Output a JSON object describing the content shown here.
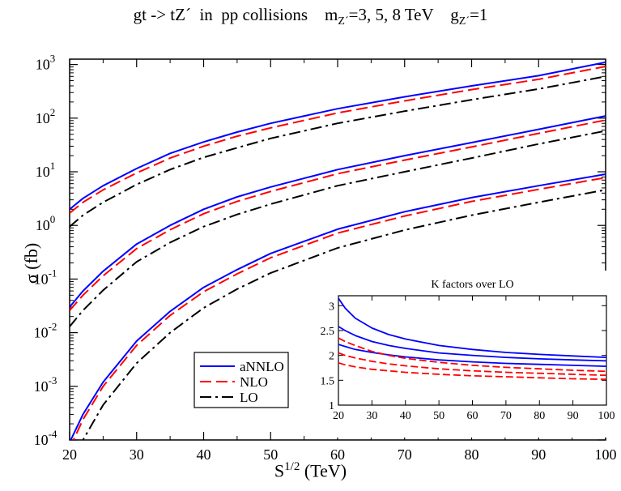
{
  "chart_data": {
    "type": "line",
    "title_parts": {
      "prefix": "gt -> tZ´  in  pp collisions    m",
      "sub1": "Z´",
      "middle": "=3, 5, 8 TeV    g",
      "sub2": "Z´",
      "suffix": "=1"
    },
    "xlabel_base": "S",
    "xlabel_sup": "1/2",
    "xlabel_unit": " (TeV)",
    "ylabel": "σ (fb)",
    "xlim": [
      20,
      100
    ],
    "ylim_log10": [
      -4,
      3.1
    ],
    "x_ticks": [
      "20",
      "30",
      "40",
      "50",
      "60",
      "70",
      "80",
      "90",
      "100"
    ],
    "y_tick_exponents": [
      "-4",
      "-3",
      "-2",
      "-1",
      "0",
      "1",
      "2",
      "3"
    ],
    "y_tick_base": "10",
    "legend": {
      "placement": "bottom-center",
      "entries": [
        {
          "label": "aNNLO",
          "color": "#0000ff",
          "style": "solid"
        },
        {
          "label": "NLO",
          "color": "#ff0000",
          "style": "dashed"
        },
        {
          "label": "LO",
          "color": "#000000",
          "style": "dashdot"
        }
      ]
    },
    "x": [
      20,
      22,
      25,
      30,
      35,
      40,
      45,
      50,
      60,
      70,
      80,
      90,
      100
    ],
    "series_main": [
      {
        "mass": "3 TeV",
        "order": "aNNLO",
        "color": "#0000ff",
        "style": "solid",
        "values": [
          2.0,
          3.2,
          5.5,
          11.5,
          22,
          36,
          55,
          80,
          150,
          250,
          400,
          620,
          1100
        ]
      },
      {
        "mass": "3 TeV",
        "order": "NLO",
        "color": "#ff0000",
        "style": "dashed",
        "values": [
          1.7,
          2.7,
          4.6,
          9.5,
          18,
          30,
          46,
          66,
          125,
          210,
          340,
          530,
          920
        ]
      },
      {
        "mass": "3 TeV",
        "order": "LO",
        "color": "#000000",
        "style": "dashdot",
        "values": [
          0.95,
          1.55,
          2.7,
          5.8,
          11,
          18.5,
          28,
          42,
          80,
          135,
          220,
          350,
          600
        ]
      },
      {
        "mass": "5 TeV",
        "order": "aNNLO",
        "color": "#0000ff",
        "style": "solid",
        "values": [
          0.03,
          0.06,
          0.14,
          0.45,
          1.0,
          2.0,
          3.4,
          5.2,
          11,
          20,
          35,
          62,
          110
        ]
      },
      {
        "mass": "5 TeV",
        "order": "NLO",
        "color": "#ff0000",
        "style": "dashed",
        "values": [
          0.026,
          0.05,
          0.115,
          0.37,
          0.83,
          1.65,
          2.8,
          4.3,
          9.2,
          16.5,
          29,
          52,
          92
        ]
      },
      {
        "mass": "5 TeV",
        "order": "LO",
        "color": "#000000",
        "style": "dashdot",
        "values": [
          0.013,
          0.026,
          0.062,
          0.21,
          0.48,
          0.95,
          1.6,
          2.5,
          5.5,
          10,
          18,
          33,
          58
        ]
      },
      {
        "mass": "8 TeV",
        "order": "aNNLO",
        "color": "#0000ff",
        "style": "solid",
        "values": [
          9e-05,
          0.0003,
          0.0012,
          0.007,
          0.025,
          0.07,
          0.15,
          0.3,
          0.85,
          1.8,
          3.3,
          5.5,
          9.0
        ]
      },
      {
        "mass": "8 TeV",
        "order": "NLO",
        "color": "#ff0000",
        "style": "dashed",
        "values": [
          7e-05,
          0.00024,
          0.001,
          0.0058,
          0.021,
          0.058,
          0.125,
          0.25,
          0.72,
          1.5,
          2.8,
          4.7,
          7.8
        ]
      },
      {
        "mass": "8 TeV",
        "order": "LO",
        "color": "#000000",
        "style": "dashdot",
        "values": [
          3e-05,
          0.0001,
          0.00045,
          0.0027,
          0.01,
          0.029,
          0.065,
          0.13,
          0.38,
          0.82,
          1.55,
          2.7,
          4.6
        ]
      }
    ],
    "inset": {
      "title": "K factors over LO",
      "type": "line",
      "xlim": [
        20,
        100
      ],
      "ylim": [
        1,
        3.2
      ],
      "x_ticks": [
        "20",
        "30",
        "40",
        "50",
        "60",
        "70",
        "80",
        "90",
        "100"
      ],
      "y_ticks": [
        "1",
        "1.5",
        "2",
        "2.5",
        "3"
      ],
      "x": [
        20,
        22,
        25,
        30,
        35,
        40,
        50,
        60,
        70,
        80,
        90,
        100
      ],
      "series": [
        {
          "name": "aNNLO/LO 8 TeV",
          "color": "#0000ff",
          "style": "solid",
          "values": [
            3.15,
            2.95,
            2.75,
            2.55,
            2.42,
            2.33,
            2.2,
            2.12,
            2.06,
            2.02,
            1.99,
            1.96
          ]
        },
        {
          "name": "aNNLO/LO 5 TeV",
          "color": "#0000ff",
          "style": "solid",
          "values": [
            2.58,
            2.5,
            2.4,
            2.28,
            2.2,
            2.14,
            2.05,
            2.0,
            1.96,
            1.93,
            1.91,
            1.89
          ]
        },
        {
          "name": "aNNLO/LO 3 TeV",
          "color": "#0000ff",
          "style": "solid",
          "values": [
            2.22,
            2.18,
            2.12,
            2.06,
            2.01,
            1.97,
            1.91,
            1.87,
            1.84,
            1.82,
            1.8,
            1.78
          ]
        },
        {
          "name": "NLO/LO 8 TeV",
          "color": "#ff0000",
          "style": "dashed",
          "values": [
            2.35,
            2.28,
            2.2,
            2.08,
            2.0,
            1.94,
            1.86,
            1.8,
            1.76,
            1.73,
            1.7,
            1.68
          ]
        },
        {
          "name": "NLO/LO 5 TeV",
          "color": "#ff0000",
          "style": "dashed",
          "values": [
            2.05,
            2.0,
            1.95,
            1.88,
            1.83,
            1.79,
            1.73,
            1.69,
            1.66,
            1.64,
            1.62,
            1.6
          ]
        },
        {
          "name": "NLO/LO 3 TeV",
          "color": "#ff0000",
          "style": "dashed",
          "values": [
            1.85,
            1.81,
            1.77,
            1.72,
            1.69,
            1.66,
            1.62,
            1.59,
            1.57,
            1.55,
            1.53,
            1.52
          ]
        }
      ]
    }
  }
}
